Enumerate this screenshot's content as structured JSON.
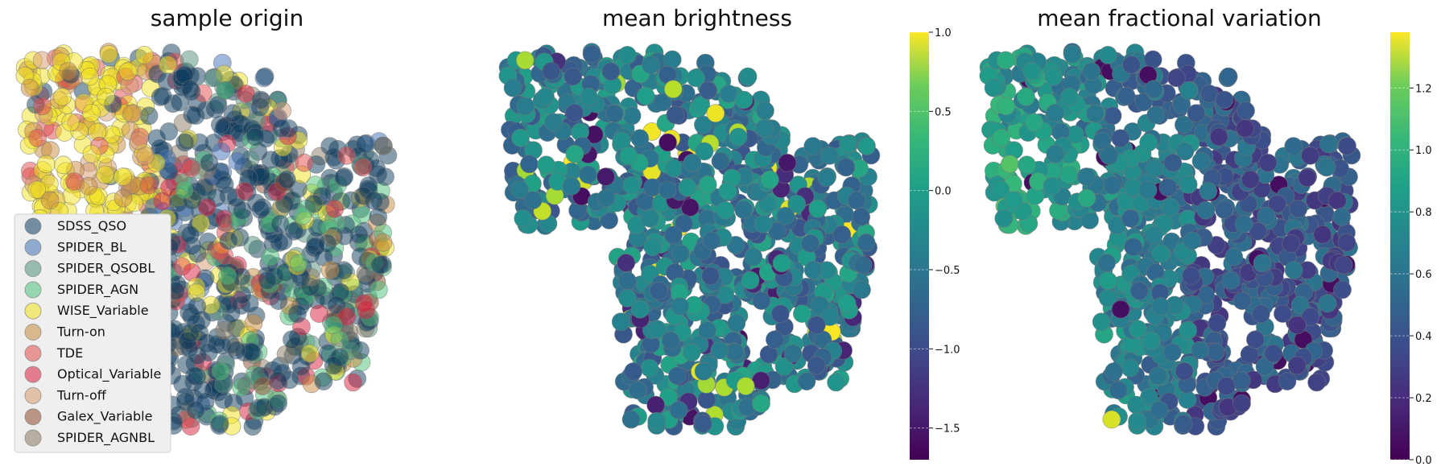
{
  "chart_data": [
    {
      "type": "scatter",
      "title": "sample origin",
      "xlabel": "",
      "ylabel": "",
      "axes_visible": false,
      "legend_position": "lower-left",
      "series": [
        {
          "name": "SDSS_QSO",
          "color": "#0d3b5e"
        },
        {
          "name": "SPIDER_BL",
          "color": "#3f6fb5"
        },
        {
          "name": "SPIDER_QSOBL",
          "color": "#4f8f7a"
        },
        {
          "name": "SPIDER_AGN",
          "color": "#4cc27a"
        },
        {
          "name": "WISE_Variable",
          "color": "#f2e21e"
        },
        {
          "name": "Turn-on",
          "color": "#c98a3c"
        },
        {
          "name": "TDE",
          "color": "#e24a4a"
        },
        {
          "name": "Optical_Variable",
          "color": "#d91e3c"
        },
        {
          "name": "Turn-off",
          "color": "#d69a6e"
        },
        {
          "name": "Galex_Variable",
          "color": "#8b4a2b"
        },
        {
          "name": "SPIDER_AGNBL",
          "color": "#8a7a62"
        }
      ]
    },
    {
      "type": "scatter",
      "title": "mean brightness",
      "xlabel": "",
      "ylabel": "",
      "axes_visible": false,
      "colormap": "viridis",
      "colorbar": {
        "range": [
          -1.7,
          1.0
        ],
        "ticks": [
          1.0,
          0.5,
          0.0,
          -0.5,
          -1.0,
          -1.5
        ],
        "tick_labels": [
          "1.0",
          "0.5",
          "0.0",
          "−0.5",
          "−1.0",
          "−1.5"
        ]
      },
      "value_summary": {
        "typical_min": -1.3,
        "typical_max": 0.2,
        "outlier_max": 1.0
      }
    },
    {
      "type": "scatter",
      "title": "mean fractional variation",
      "xlabel": "",
      "ylabel": "",
      "axes_visible": false,
      "colormap": "viridis",
      "colorbar": {
        "range": [
          0.0,
          1.38
        ],
        "ticks": [
          1.2,
          1.0,
          0.8,
          0.6,
          0.4,
          0.2,
          0.0
        ],
        "tick_labels": [
          "1.2",
          "1.0",
          "0.8",
          "0.6",
          "0.4",
          "0.2",
          "0.0"
        ]
      },
      "value_summary": {
        "typical_min": 0.2,
        "typical_max": 0.9,
        "outlier_max": 1.35
      }
    }
  ]
}
